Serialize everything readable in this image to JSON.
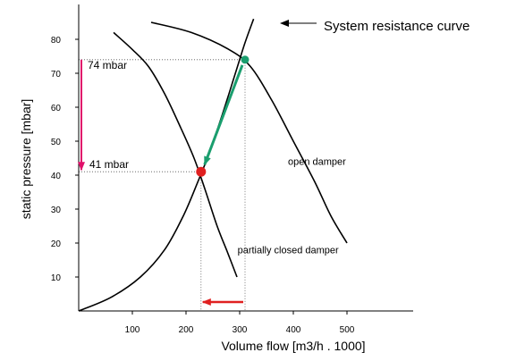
{
  "chart_data": {
    "type": "line",
    "xlabel": "Volume flow [m3/h . 1000]",
    "ylabel": "static pressure [mbar]",
    "xlim": [
      0,
      600
    ],
    "ylim": [
      0,
      90
    ],
    "x_ticks": [
      {
        "value": 100,
        "label": "100"
      },
      {
        "value": 200,
        "label": "200"
      },
      {
        "value": 300,
        "label": "300"
      },
      {
        "value": 400,
        "label": "400"
      },
      {
        "value": 500,
        "label": "500"
      }
    ],
    "y_ticks": [
      {
        "value": 10,
        "label": "10"
      },
      {
        "value": 20,
        "label": "20"
      },
      {
        "value": 30,
        "label": "30"
      },
      {
        "value": 40,
        "label": "40"
      },
      {
        "value": 50,
        "label": "50"
      },
      {
        "value": 60,
        "label": "60"
      },
      {
        "value": 70,
        "label": "70"
      },
      {
        "value": 80,
        "label": "80"
      }
    ],
    "series": [
      {
        "name": "System resistance curve",
        "color": "#000000",
        "points": [
          [
            0,
            0
          ],
          [
            60,
            4
          ],
          [
            115,
            10
          ],
          [
            160,
            18
          ],
          [
            195,
            28
          ],
          [
            222,
            38
          ],
          [
            242,
            46
          ],
          [
            268,
            58
          ],
          [
            292,
            70
          ],
          [
            310,
            79
          ],
          [
            326,
            86
          ]
        ]
      },
      {
        "name": "open damper",
        "color": "#000000",
        "points": [
          [
            135,
            85
          ],
          [
            210,
            82
          ],
          [
            280,
            77
          ],
          [
            320,
            72
          ],
          [
            360,
            62
          ],
          [
            400,
            50
          ],
          [
            440,
            38
          ],
          [
            470,
            28
          ],
          [
            500,
            20
          ]
        ]
      },
      {
        "name": "partially closed damper",
        "color": "#000000",
        "points": [
          [
            65,
            82
          ],
          [
            100,
            77
          ],
          [
            130,
            72
          ],
          [
            160,
            64
          ],
          [
            190,
            54
          ],
          [
            215,
            45
          ],
          [
            235,
            36
          ],
          [
            258,
            25
          ],
          [
            278,
            17
          ],
          [
            295,
            10
          ]
        ]
      }
    ],
    "operating_points": [
      {
        "x": 310,
        "y": 74,
        "color": "#1a9e6e",
        "label": "74 mbar"
      },
      {
        "x": 228,
        "y": 41,
        "color": "#e02020",
        "label": "41 mbar"
      }
    ],
    "annotations": {
      "system_resistance": "System resistance curve",
      "open_damper": "open damper",
      "partially_closed": "partially closed damper",
      "pressure_high": "74 mbar",
      "pressure_low": "41 mbar"
    },
    "arrows": {
      "pressure_drop_color": "#e0106a",
      "flow_drop_color": "#e02020",
      "shift_color": "#1a9e6e"
    }
  }
}
